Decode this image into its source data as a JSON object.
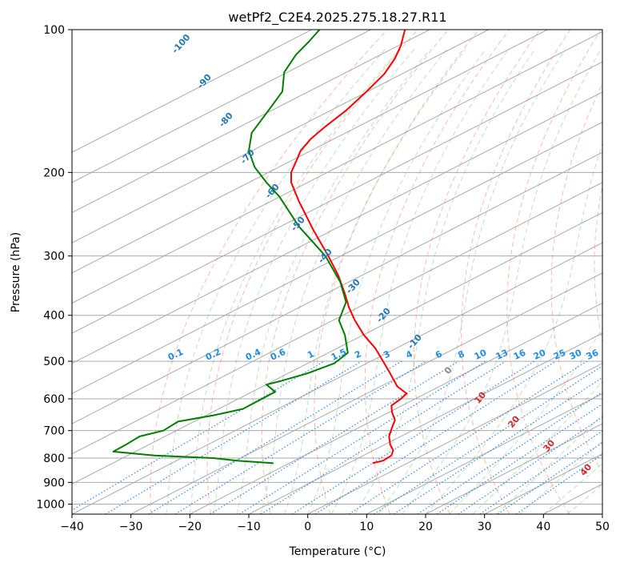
{
  "chart_data": {
    "type": "line",
    "title": "wetPf2_C2E4.2025.275.18.27.R11",
    "xlabel": "Temperature (°C)",
    "ylabel": "Pressure (hPa)",
    "xlim": [
      -40,
      50
    ],
    "ylim": [
      1050,
      100
    ],
    "y_scale": "log",
    "x_ticks": [
      -40,
      -30,
      -20,
      -10,
      0,
      10,
      20,
      30,
      40,
      50
    ],
    "y_ticks": [
      1000,
      900,
      800,
      700,
      600,
      500,
      400,
      300,
      200,
      100
    ],
    "grid": true,
    "series": [
      {
        "color": "#ff0000",
        "x_axis_positions": [
          11.0,
          12.8,
          14.2,
          14.5,
          14.0,
          13.8,
          14.3,
          14.8,
          14.3,
          14.2,
          15.8,
          16.8,
          15.2,
          14.5,
          13.8,
          13.0,
          11.5,
          9.5,
          8.0,
          7.0,
          6.3,
          5.2,
          3.5,
          1.0,
          -1.5,
          -2.8,
          -2.8,
          -2.0,
          -1.2,
          0.5,
          3.0,
          6.5,
          10.0,
          13.0,
          14.8,
          15.8,
          16.5
        ],
        "pressure": [
          820,
          810,
          790,
          770,
          750,
          720,
          690,
          665,
          640,
          620,
          600,
          585,
          565,
          545,
          525,
          505,
          470,
          440,
          410,
          385,
          360,
          330,
          300,
          265,
          230,
          210,
          200,
          190,
          180,
          170,
          160,
          148,
          135,
          124,
          115,
          108,
          100
        ]
      },
      {
        "color": "#008000",
        "x_axis_positions": [
          -5.8,
          -12.0,
          -16.0,
          -26.0,
          -33.0,
          -30.5,
          -28.5,
          -24.5,
          -22.0,
          -16.0,
          -11.0,
          -5.5,
          -7.0,
          -4.5,
          0.0,
          4.5,
          6.8,
          6.3,
          5.3,
          6.5,
          5.5,
          3.0,
          -1.5,
          -4.8,
          -7.0,
          -9.0,
          -10.0,
          -9.5,
          -7.0,
          -4.3,
          -4.0,
          -2.0,
          0.2,
          2.0
        ],
        "pressure": [
          820,
          810,
          800,
          790,
          775,
          745,
          720,
          700,
          670,
          650,
          630,
          580,
          560,
          550,
          530,
          505,
          480,
          440,
          410,
          375,
          340,
          300,
          260,
          225,
          210,
          195,
          180,
          165,
          150,
          135,
          123,
          113,
          106,
          100
        ]
      }
    ],
    "dry_adiabat_labels": [
      "-100",
      "-90",
      "-80",
      "-70",
      "-60",
      "-50",
      "-40",
      "-30",
      "-20",
      "-10"
    ],
    "mixing_ratio_labels": [
      "0.1",
      "0.2",
      "0.4",
      "0.6",
      "1",
      "1.5",
      "2",
      "3",
      "4",
      "6",
      "8",
      "10",
      "13",
      "16",
      "20",
      "25",
      "30",
      "36"
    ],
    "moist_adiabat_labels": [
      "0",
      "10",
      "20",
      "30",
      "40"
    ],
    "colors": {
      "temperature": "#ff0000",
      "dewpoint": "#008000",
      "isotherm": "#aaaaaa",
      "dry_adiabat": "#fa8060",
      "moist_adiabat": "#50a050",
      "mixing_ratio": "#1e8ce6",
      "dry_label": "#1f77b4",
      "moist_label": "#d62728",
      "mixing_label": "#1e8ce6"
    }
  }
}
